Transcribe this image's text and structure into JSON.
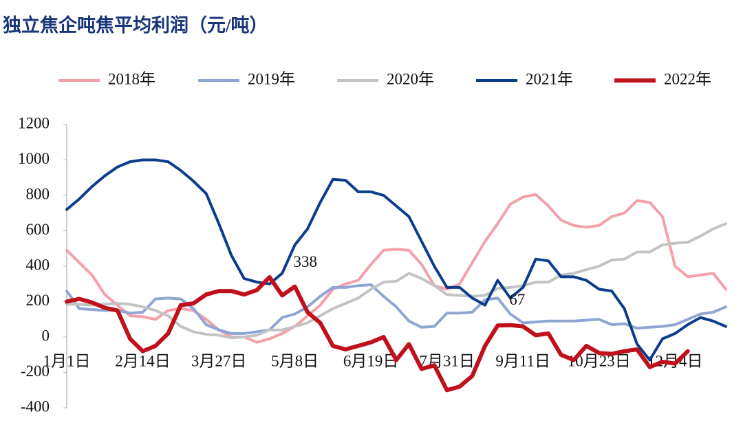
{
  "chart_data": {
    "type": "line",
    "title": "独立焦企吨焦平均利润（元/吨）",
    "categories": [
      "1月1日",
      null,
      null,
      null,
      null,
      null,
      "2月14日",
      null,
      null,
      null,
      null,
      null,
      "3月27日",
      null,
      null,
      null,
      null,
      null,
      "5月8日",
      null,
      null,
      null,
      null,
      null,
      "6月19日",
      null,
      null,
      null,
      null,
      null,
      "7月31日",
      null,
      null,
      null,
      null,
      null,
      "9月11日",
      null,
      null,
      null,
      null,
      null,
      "10月23日",
      null,
      null,
      null,
      null,
      null,
      "12月4日",
      null,
      null,
      null,
      null
    ],
    "series": [
      {
        "name": "2018年",
        "color": "#f4a0aa",
        "values": [
          490,
          420,
          350,
          240,
          180,
          120,
          115,
          100,
          150,
          160,
          150,
          100,
          40,
          0,
          0,
          -30,
          -10,
          20,
          60,
          120,
          180,
          270,
          300,
          320,
          410,
          490,
          495,
          490,
          410,
          290,
          270,
          300,
          420,
          540,
          640,
          750,
          790,
          805,
          740,
          660,
          630,
          620,
          630,
          680,
          700,
          770,
          760,
          680,
          400,
          340,
          350,
          360,
          270
        ]
      },
      {
        "name": "2019年",
        "color": "#8fa6d4",
        "values": [
          260,
          160,
          155,
          150,
          150,
          135,
          140,
          215,
          220,
          215,
          160,
          70,
          40,
          20,
          20,
          30,
          40,
          110,
          130,
          170,
          230,
          280,
          280,
          290,
          295,
          230,
          170,
          90,
          55,
          60,
          135,
          135,
          140,
          210,
          220,
          130,
          80,
          85,
          90,
          90,
          90,
          95,
          100,
          70,
          75,
          50,
          55,
          60,
          70,
          100,
          130,
          140,
          170
        ]
      },
      {
        "name": "2020年",
        "color": "#c3c3c3",
        "values": [
          185,
          185,
          180,
          185,
          190,
          185,
          170,
          150,
          120,
          60,
          30,
          15,
          10,
          -5,
          0,
          10,
          40,
          40,
          60,
          80,
          120,
          160,
          190,
          220,
          270,
          310,
          315,
          360,
          330,
          290,
          240,
          235,
          230,
          235,
          275,
          280,
          290,
          310,
          310,
          350,
          360,
          380,
          400,
          435,
          440,
          480,
          480,
          520,
          530,
          535,
          570,
          610,
          640
        ]
      },
      {
        "name": "2021年",
        "color": "#0b3d8c",
        "values": [
          720,
          780,
          850,
          910,
          960,
          990,
          1000,
          1000,
          990,
          940,
          880,
          810,
          640,
          460,
          330,
          310,
          300,
          360,
          520,
          610,
          760,
          890,
          885,
          820,
          820,
          800,
          740,
          680,
          540,
          400,
          280,
          280,
          220,
          180,
          320,
          220,
          280,
          440,
          430,
          340,
          340,
          320,
          270,
          260,
          160,
          -40,
          -130,
          -10,
          20,
          70,
          110,
          90,
          60
        ]
      },
      {
        "name": "2022年",
        "color": "#c0101c",
        "values": [
          200,
          215,
          195,
          165,
          150,
          -10,
          -80,
          -50,
          20,
          180,
          190,
          240,
          260,
          260,
          240,
          265,
          338,
          235,
          285,
          140,
          80,
          -50,
          -70,
          -50,
          -30,
          0,
          -130,
          -40,
          -180,
          -160,
          -300,
          -280,
          -220,
          -50,
          65,
          67,
          60,
          10,
          20,
          -100,
          -130,
          -50,
          -90,
          -95,
          -80,
          -70,
          -170,
          -140,
          -150,
          -80,
          null,
          null,
          null
        ]
      }
    ],
    "ylim": [
      -400,
      1200
    ],
    "yticks": [
      -400,
      -200,
      0,
      200,
      400,
      600,
      800,
      1000,
      1200
    ]
  }
}
